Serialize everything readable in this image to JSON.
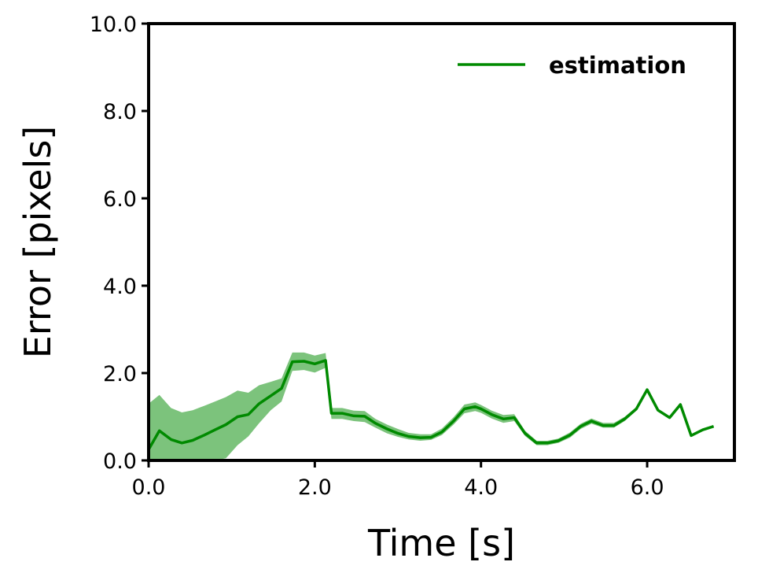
{
  "chart_data": {
    "type": "line",
    "xlabel": "Time [s]",
    "ylabel": "Error [pixels]",
    "xlim": [
      0,
      7.05
    ],
    "ylim": [
      0,
      10
    ],
    "x_ticks": [
      0,
      2,
      4,
      6
    ],
    "x_tick_labels": [
      "0.0",
      "2.0",
      "4.0",
      "6.0"
    ],
    "y_ticks": [
      0,
      2,
      4,
      6,
      8,
      10
    ],
    "y_tick_labels": [
      "0.0",
      "2.0",
      "4.0",
      "6.0",
      "8.0",
      "10.0"
    ],
    "grid": false,
    "legend_position": "top-right",
    "colors": {
      "line": "#008a00",
      "band": "#44aa44"
    },
    "series": [
      {
        "name": "estimation",
        "x": [
          0.0,
          0.13,
          0.27,
          0.4,
          0.53,
          0.67,
          0.8,
          0.93,
          1.07,
          1.2,
          1.33,
          1.47,
          1.6,
          1.73,
          1.87,
          2.0,
          2.13,
          2.2,
          2.33,
          2.47,
          2.6,
          2.73,
          2.87,
          3.0,
          3.13,
          3.27,
          3.4,
          3.53,
          3.67,
          3.8,
          3.93,
          4.0,
          4.13,
          4.27,
          4.4,
          4.53,
          4.67,
          4.8,
          4.93,
          5.07,
          5.2,
          5.33,
          5.47,
          5.6,
          5.73,
          5.87,
          6.0,
          6.13,
          6.27,
          6.4,
          6.53,
          6.67,
          6.8
        ],
        "y": [
          0.25,
          0.68,
          0.48,
          0.4,
          0.46,
          0.58,
          0.7,
          0.82,
          1.0,
          1.05,
          1.3,
          1.48,
          1.65,
          2.26,
          2.27,
          2.21,
          2.29,
          1.08,
          1.08,
          1.02,
          1.01,
          0.85,
          0.72,
          0.62,
          0.55,
          0.52,
          0.53,
          0.65,
          0.9,
          1.18,
          1.23,
          1.18,
          1.05,
          0.95,
          0.98,
          0.62,
          0.4,
          0.4,
          0.45,
          0.58,
          0.78,
          0.9,
          0.8,
          0.8,
          0.95,
          1.18,
          1.62,
          1.15,
          0.98,
          1.28,
          0.57,
          0.7,
          0.78
        ],
        "lower": [
          0.0,
          0.0,
          0.0,
          0.0,
          0.0,
          0.0,
          0.0,
          0.05,
          0.35,
          0.55,
          0.85,
          1.15,
          1.35,
          2.05,
          2.07,
          2.01,
          2.12,
          0.95,
          0.95,
          0.9,
          0.88,
          0.75,
          0.62,
          0.54,
          0.48,
          0.45,
          0.47,
          0.58,
          0.82,
          1.08,
          1.13,
          1.09,
          0.96,
          0.86,
          0.9,
          0.56,
          0.35,
          0.35,
          0.4,
          0.52,
          0.72,
          0.84,
          0.75,
          0.75,
          0.9,
          1.14,
          1.6,
          1.14,
          0.97,
          1.27,
          0.56,
          0.69,
          0.77
        ],
        "upper": [
          1.3,
          1.5,
          1.2,
          1.1,
          1.15,
          1.25,
          1.35,
          1.45,
          1.6,
          1.55,
          1.72,
          1.8,
          1.88,
          2.47,
          2.47,
          2.4,
          2.46,
          1.2,
          1.2,
          1.14,
          1.13,
          0.95,
          0.82,
          0.72,
          0.63,
          0.6,
          0.6,
          0.73,
          0.99,
          1.28,
          1.33,
          1.27,
          1.14,
          1.04,
          1.06,
          0.68,
          0.45,
          0.45,
          0.5,
          0.64,
          0.84,
          0.96,
          0.86,
          0.86,
          1.0,
          1.22,
          1.64,
          1.16,
          0.99,
          1.29,
          0.58,
          0.71,
          0.79
        ]
      }
    ]
  }
}
